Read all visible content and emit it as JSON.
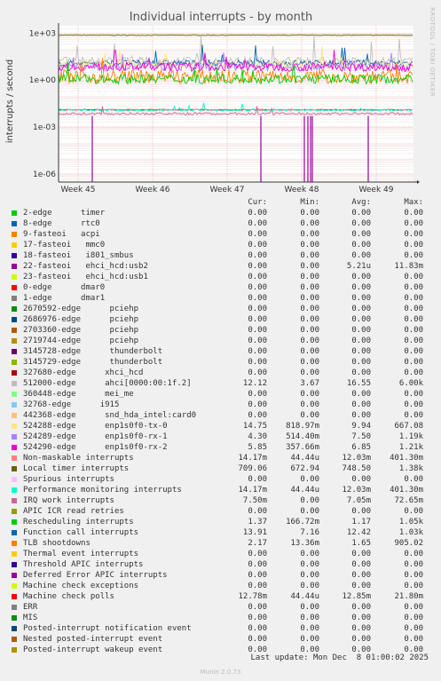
{
  "title": "Individual interrupts - by month",
  "ylabel": "interrupts / second",
  "watermark": "RRDTOOL / TOBI OETIKER",
  "columns": {
    "cur": "Cur:",
    "min": "Min:",
    "avg": "Avg:",
    "max": "Max:"
  },
  "footer": {
    "last_update": "Last update: Mon Dec  8 01:00:02 2025",
    "munin": "Munin 2.0.73"
  },
  "chart_data": {
    "type": "line",
    "title": "Individual interrupts - by month",
    "ylabel": "interrupts / second",
    "yscale": "log",
    "yticks": [
      "1e-06",
      "1e-03",
      "1e+00",
      "1e+03"
    ],
    "ytick_values": [
      1e-06,
      0.001,
      1,
      1000
    ],
    "ylim": [
      3e-07,
      3000
    ],
    "xticks": [
      "Week 45",
      "Week 46",
      "Week 47",
      "Week 48",
      "Week 49"
    ],
    "grid": true,
    "legend_placement": "bottom",
    "series": [
      {
        "name": "2-edge      timer",
        "color": "#00cc00",
        "cur": "0.00",
        "min": "0.00",
        "avg": "0.00",
        "max": "0.00"
      },
      {
        "name": "8-edge      rtc0",
        "color": "#0066b3",
        "cur": "0.00",
        "min": "0.00",
        "avg": "0.00",
        "max": "0.00"
      },
      {
        "name": "9-fasteoi   acpi",
        "color": "#ff8000",
        "cur": "0.00",
        "min": "0.00",
        "avg": "0.00",
        "max": "0.00"
      },
      {
        "name": "17-fasteoi   mmc0",
        "color": "#ffcc00",
        "cur": "0.00",
        "min": "0.00",
        "avg": "0.00",
        "max": "0.00"
      },
      {
        "name": "18-fasteoi   i801_smbus",
        "color": "#330099",
        "cur": "0.00",
        "min": "0.00",
        "avg": "0.00",
        "max": "0.00"
      },
      {
        "name": "22-fasteoi   ehci_hcd:usb2",
        "color": "#990099",
        "cur": "0.00",
        "min": "0.00",
        "avg": "5.21u",
        "max": "11.83m"
      },
      {
        "name": "23-fasteoi   ehci_hcd:usb1",
        "color": "#ccff00",
        "cur": "0.00",
        "min": "0.00",
        "avg": "0.00",
        "max": "0.00"
      },
      {
        "name": "0-edge      dmar0",
        "color": "#ff0000",
        "cur": "0.00",
        "min": "0.00",
        "avg": "0.00",
        "max": "0.00"
      },
      {
        "name": "1-edge      dmar1",
        "color": "#808080",
        "cur": "0.00",
        "min": "0.00",
        "avg": "0.00",
        "max": "0.00"
      },
      {
        "name": "2670592-edge      pciehp",
        "color": "#008f00",
        "cur": "0.00",
        "min": "0.00",
        "avg": "0.00",
        "max": "0.00"
      },
      {
        "name": "2686976-edge      pciehp",
        "color": "#00487d",
        "cur": "0.00",
        "min": "0.00",
        "avg": "0.00",
        "max": "0.00"
      },
      {
        "name": "2703360-edge      pciehp",
        "color": "#b35a00",
        "cur": "0.00",
        "min": "0.00",
        "avg": "0.00",
        "max": "0.00"
      },
      {
        "name": "2719744-edge      pciehp",
        "color": "#b38f00",
        "cur": "0.00",
        "min": "0.00",
        "avg": "0.00",
        "max": "0.00"
      },
      {
        "name": "3145728-edge      thunderbolt",
        "color": "#6b006b",
        "cur": "0.00",
        "min": "0.00",
        "avg": "0.00",
        "max": "0.00"
      },
      {
        "name": "3145729-edge      thunderbolt",
        "color": "#8fb300",
        "cur": "0.00",
        "min": "0.00",
        "avg": "0.00",
        "max": "0.00"
      },
      {
        "name": "327680-edge      xhci_hcd",
        "color": "#b30000",
        "cur": "0.00",
        "min": "0.00",
        "avg": "0.00",
        "max": "0.00"
      },
      {
        "name": "512000-edge      ahci[0000:00:1f.2]",
        "color": "#bebebe",
        "cur": "12.12",
        "min": "3.67",
        "avg": "16.55",
        "max": "6.00k"
      },
      {
        "name": "360448-edge      mei_me",
        "color": "#80ff80",
        "cur": "0.00",
        "min": "0.00",
        "avg": "0.00",
        "max": "0.00"
      },
      {
        "name": "32768-edge      i915",
        "color": "#80c9ff",
        "cur": "0.00",
        "min": "0.00",
        "avg": "0.00",
        "max": "0.00"
      },
      {
        "name": "442368-edge      snd_hda_intel:card0",
        "color": "#ffc080",
        "cur": "0.00",
        "min": "0.00",
        "avg": "0.00",
        "max": "0.00"
      },
      {
        "name": "524288-edge      enp1s0f0-tx-0",
        "color": "#ffe680",
        "cur": "14.75",
        "min": "818.97m",
        "avg": "9.94",
        "max": "667.08"
      },
      {
        "name": "524289-edge      enp1s0f0-rx-1",
        "color": "#aa80ff",
        "cur": "4.30",
        "min": "514.40m",
        "avg": "7.50",
        "max": "1.19k"
      },
      {
        "name": "524290-edge      enp1s0f0-rx-2",
        "color": "#ee00cc",
        "cur": "5.85",
        "min": "357.66m",
        "avg": "6.85",
        "max": "1.21k"
      },
      {
        "name": "Non-maskable interrupts",
        "color": "#ff8080",
        "cur": "14.17m",
        "min": "44.44u",
        "avg": "12.03m",
        "max": "401.30m"
      },
      {
        "name": "Local timer interrupts",
        "color": "#666600",
        "cur": "709.06",
        "min": "672.94",
        "avg": "748.50",
        "max": "1.38k"
      },
      {
        "name": "Spurious interrupts",
        "color": "#ffbfff",
        "cur": "0.00",
        "min": "0.00",
        "avg": "0.00",
        "max": "0.00"
      },
      {
        "name": "Performance monitoring interrupts",
        "color": "#00ffcc",
        "cur": "14.17m",
        "min": "44.44u",
        "avg": "12.03m",
        "max": "401.30m"
      },
      {
        "name": "IRQ work interrupts",
        "color": "#cc6699",
        "cur": "7.50m",
        "min": "0.00",
        "avg": "7.05m",
        "max": "72.65m"
      },
      {
        "name": "APIC ICR read retries",
        "color": "#999900",
        "cur": "0.00",
        "min": "0.00",
        "avg": "0.00",
        "max": "0.00"
      },
      {
        "name": "Rescheduling interrupts",
        "color": "#00cc00",
        "cur": "1.37",
        "min": "166.72m",
        "avg": "1.17",
        "max": "1.05k"
      },
      {
        "name": "Function call interrupts",
        "color": "#0066b3",
        "cur": "13.91",
        "min": "7.16",
        "avg": "12.42",
        "max": "1.03k"
      },
      {
        "name": "TLB shootdowns",
        "color": "#ff8000",
        "cur": "2.17",
        "min": "13.36m",
        "avg": "1.65",
        "max": "905.02"
      },
      {
        "name": "Thermal event interrupts",
        "color": "#ffcc00",
        "cur": "0.00",
        "min": "0.00",
        "avg": "0.00",
        "max": "0.00"
      },
      {
        "name": "Threshold APIC interrupts",
        "color": "#330099",
        "cur": "0.00",
        "min": "0.00",
        "avg": "0.00",
        "max": "0.00"
      },
      {
        "name": "Deferred Error APIC interrupts",
        "color": "#990099",
        "cur": "0.00",
        "min": "0.00",
        "avg": "0.00",
        "max": "0.00"
      },
      {
        "name": "Machine check exceptions",
        "color": "#ccff00",
        "cur": "0.00",
        "min": "0.00",
        "avg": "0.00",
        "max": "0.00"
      },
      {
        "name": "Machine check polls",
        "color": "#ff0000",
        "cur": "12.78m",
        "min": "44.44u",
        "avg": "12.85m",
        "max": "21.80m"
      },
      {
        "name": "ERR",
        "color": "#808080",
        "cur": "0.00",
        "min": "0.00",
        "avg": "0.00",
        "max": "0.00"
      },
      {
        "name": "MIS",
        "color": "#008f00",
        "cur": "0.00",
        "min": "0.00",
        "avg": "0.00",
        "max": "0.00"
      },
      {
        "name": "Posted-interrupt notification event",
        "color": "#00487d",
        "cur": "0.00",
        "min": "0.00",
        "avg": "0.00",
        "max": "0.00"
      },
      {
        "name": "Nested posted-interrupt event",
        "color": "#b35a00",
        "cur": "0.00",
        "min": "0.00",
        "avg": "0.00",
        "max": "0.00"
      },
      {
        "name": "Posted-interrupt wakeup event",
        "color": "#b38f00",
        "cur": "0.00",
        "min": "0.00",
        "avg": "0.00",
        "max": "0.00"
      }
    ]
  }
}
